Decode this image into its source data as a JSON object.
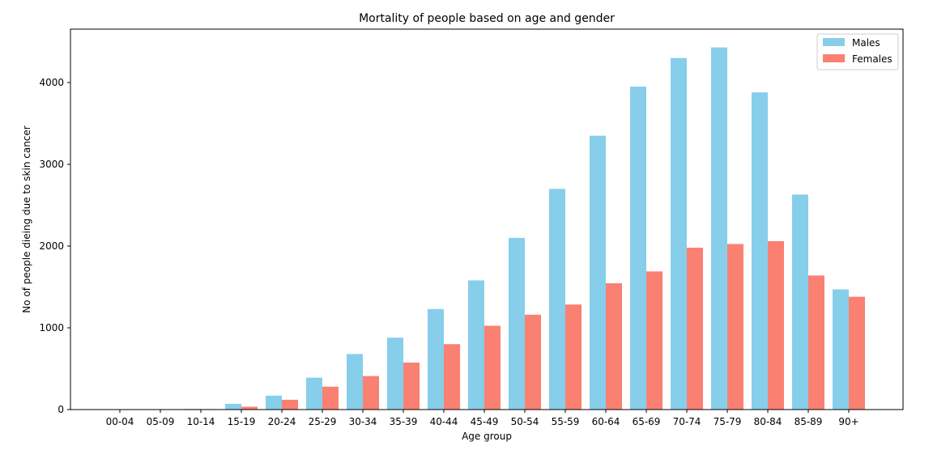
{
  "chart_data": {
    "type": "bar",
    "title": "Mortality of people based on age and gender",
    "xlabel": "Age group",
    "ylabel": "No of people dieing due to skin cancer",
    "categories": [
      "00-04",
      "05-09",
      "10-14",
      "15-19",
      "20-24",
      "25-29",
      "30-34",
      "35-39",
      "40-44",
      "45-49",
      "50-54",
      "55-59",
      "60-64",
      "65-69",
      "70-74",
      "75-79",
      "80-84",
      "85-89",
      "90+"
    ],
    "series": [
      {
        "name": "Males",
        "color": "#87ceeb",
        "values": [
          5,
          2,
          8,
          70,
          170,
          390,
          680,
          880,
          1230,
          1580,
          2100,
          2700,
          3350,
          3950,
          4300,
          4430,
          3880,
          2630,
          1470
        ]
      },
      {
        "name": "Females",
        "color": "#fa8072",
        "values": [
          2,
          2,
          6,
          35,
          120,
          280,
          410,
          575,
          800,
          1025,
          1160,
          1285,
          1545,
          1690,
          1980,
          2025,
          2060,
          1640,
          1380
        ]
      }
    ],
    "ylim": [
      0,
      4650
    ],
    "yticks": [
      "0",
      "1000",
      "2000",
      "3000",
      "4000"
    ],
    "legend": "top-right",
    "grid": false
  }
}
